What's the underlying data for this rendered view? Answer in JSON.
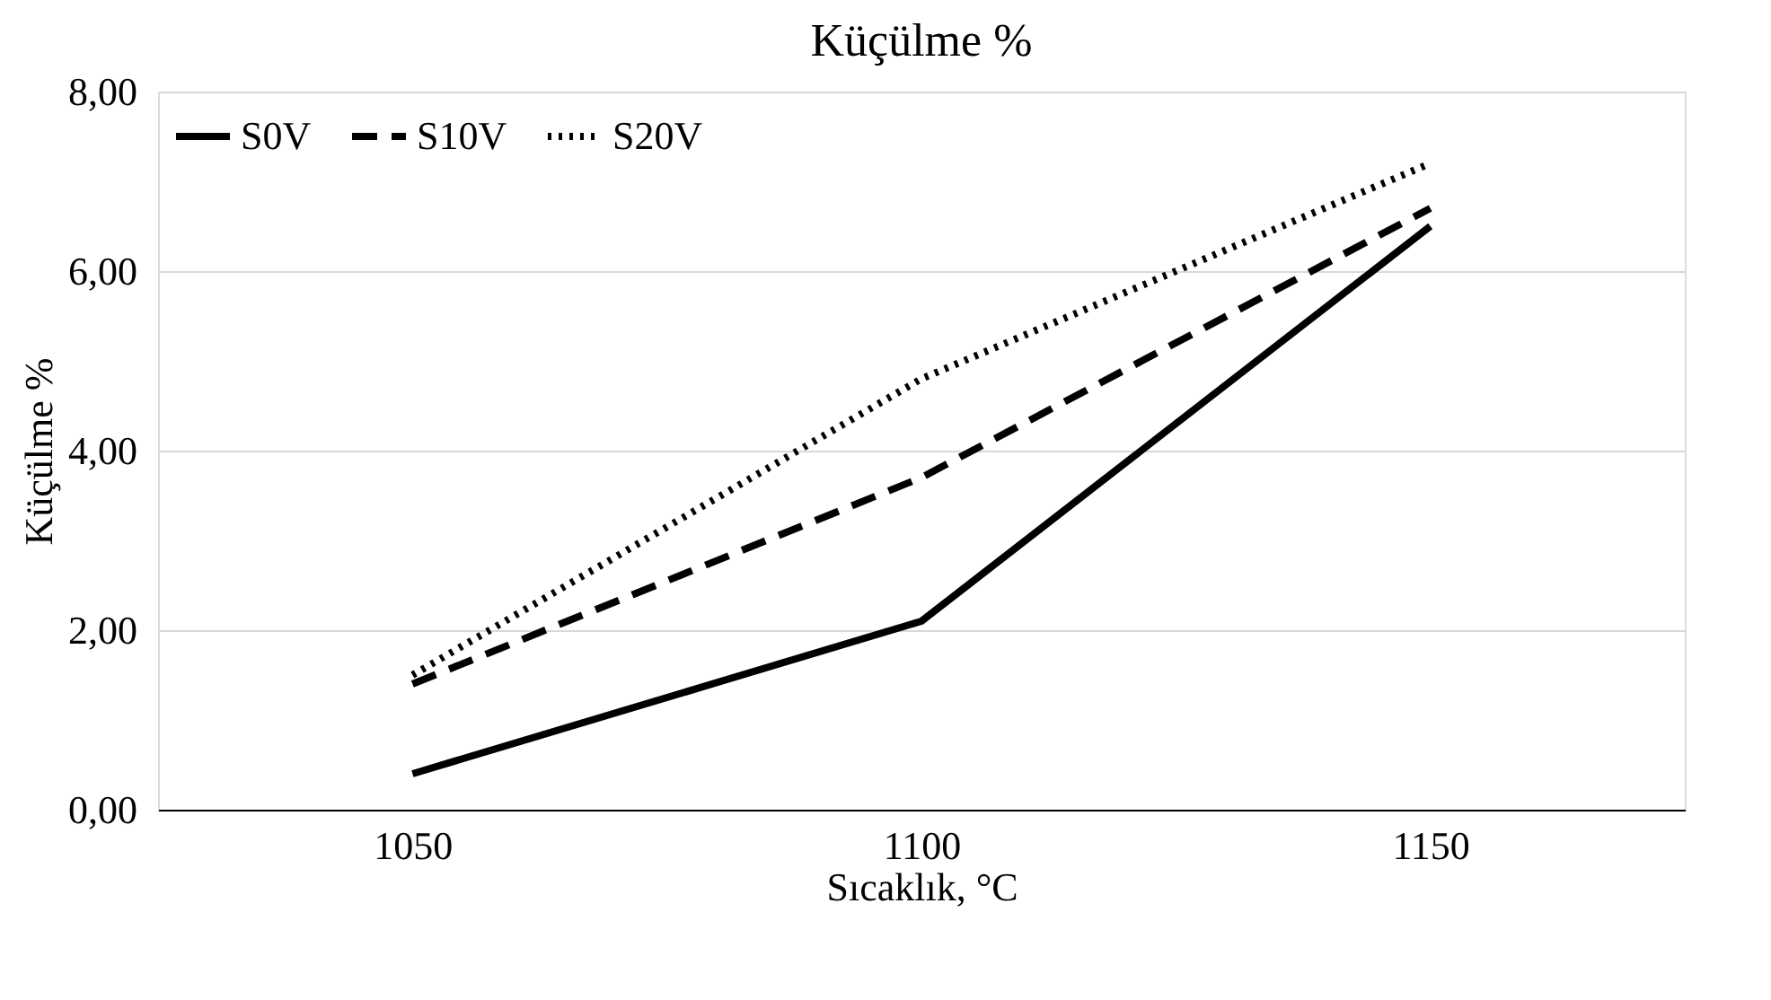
{
  "chart_data": {
    "type": "line",
    "title": "Küçülme %",
    "xlabel": "Sıcaklık, °C",
    "ylabel": "Küçülme %",
    "categories": [
      "1050",
      "1100",
      "1150"
    ],
    "series": [
      {
        "name": "S0V",
        "color": "#000000",
        "line_style": "solid",
        "values": [
          0.4,
          2.1,
          6.5
        ]
      },
      {
        "name": "S10V",
        "color": "#000000",
        "line_style": "dashed",
        "values": [
          1.4,
          3.7,
          6.7
        ]
      },
      {
        "name": "S20V",
        "color": "#000000",
        "line_style": "dotted",
        "values": [
          1.5,
          4.8,
          7.2
        ]
      }
    ],
    "ylim": [
      0,
      8
    ],
    "yticks": [
      {
        "value": 0,
        "label": "0,00"
      },
      {
        "value": 2,
        "label": "2,00"
      },
      {
        "value": 4,
        "label": "4,00"
      },
      {
        "value": 6,
        "label": "6,00"
      },
      {
        "value": 8,
        "label": "8,00"
      }
    ],
    "grid": "y",
    "legend": "top left"
  }
}
